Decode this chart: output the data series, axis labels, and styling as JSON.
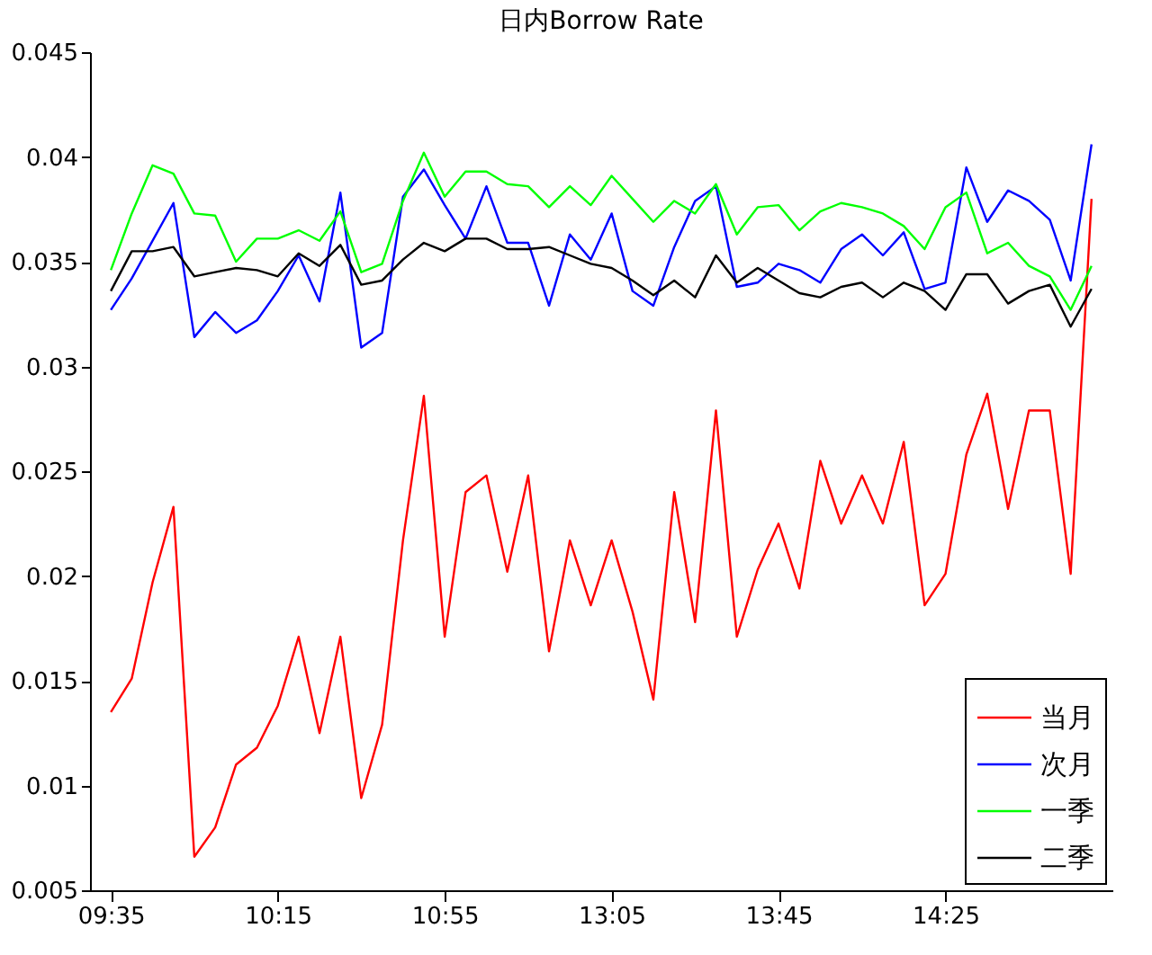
{
  "chart_data": {
    "type": "line",
    "title": "日内Borrow Rate",
    "categories": [
      "09:35",
      null,
      null,
      null,
      null,
      null,
      null,
      null,
      "10:15",
      null,
      null,
      null,
      null,
      null,
      null,
      null,
      "10:55",
      null,
      null,
      null,
      null,
      null,
      null,
      null,
      "13:05",
      null,
      null,
      null,
      null,
      null,
      null,
      null,
      "13:45",
      null,
      null,
      null,
      null,
      null,
      null,
      null,
      "14:25",
      null,
      null,
      null,
      null,
      null,
      null,
      null
    ],
    "series": [
      {
        "name": "当月",
        "color": "#ff0000",
        "values": [
          0.0135,
          0.0151,
          0.0197,
          0.0233,
          0.0066,
          0.008,
          0.011,
          0.0118,
          0.0138,
          0.0171,
          0.0125,
          0.0171,
          0.0094,
          0.0129,
          0.0217,
          0.0286,
          0.0171,
          0.024,
          0.0248,
          0.0202,
          0.0248,
          0.0164,
          0.0217,
          0.0186,
          0.0217,
          0.0183,
          0.0141,
          0.024,
          0.0178,
          0.0279,
          0.0171,
          0.0203,
          0.0225,
          0.0194,
          0.0255,
          0.0225,
          0.0248,
          0.0225,
          0.0264,
          0.0186,
          0.0201,
          0.0258,
          0.0287,
          0.0232,
          0.0279,
          0.0279,
          0.0201,
          0.038
        ]
      },
      {
        "name": "次月",
        "color": "#0000ff",
        "values": [
          0.0327,
          0.0342,
          0.036,
          0.0378,
          0.0314,
          0.0326,
          0.0316,
          0.0322,
          0.0336,
          0.0353,
          0.0331,
          0.0383,
          0.0309,
          0.0316,
          0.0381,
          0.0394,
          0.0377,
          0.0361,
          0.0386,
          0.0359,
          0.0359,
          0.0329,
          0.0363,
          0.0351,
          0.0373,
          0.0336,
          0.0329,
          0.0357,
          0.0379,
          0.0386,
          0.0338,
          0.034,
          0.0349,
          0.0346,
          0.034,
          0.0356,
          0.0363,
          0.0353,
          0.0364,
          0.0337,
          0.034,
          0.0395,
          0.0369,
          0.0384,
          0.0379,
          0.037,
          0.0341,
          0.0406
        ]
      },
      {
        "name": "一季",
        "color": "#00ff00",
        "values": [
          0.0346,
          0.0373,
          0.0396,
          0.0392,
          0.0373,
          0.0372,
          0.035,
          0.0361,
          0.0361,
          0.0365,
          0.036,
          0.0374,
          0.0345,
          0.0349,
          0.0379,
          0.0402,
          0.0381,
          0.0393,
          0.0393,
          0.0387,
          0.0386,
          0.0376,
          0.0386,
          0.0377,
          0.0391,
          0.038,
          0.0369,
          0.0379,
          0.0373,
          0.0387,
          0.0363,
          0.0376,
          0.0377,
          0.0365,
          0.0374,
          0.0378,
          0.0376,
          0.0373,
          0.0367,
          0.0356,
          0.0376,
          0.0383,
          0.0354,
          0.0359,
          0.0348,
          0.0343,
          0.0327,
          0.0348
        ]
      },
      {
        "name": "二季",
        "color": "#000000",
        "values": [
          0.0336,
          0.0355,
          0.0355,
          0.0357,
          0.0343,
          0.0345,
          0.0347,
          0.0346,
          0.0343,
          0.0354,
          0.0348,
          0.0358,
          0.0339,
          0.0341,
          0.0351,
          0.0359,
          0.0355,
          0.0361,
          0.0361,
          0.0356,
          0.0356,
          0.0357,
          0.0353,
          0.0349,
          0.0347,
          0.0341,
          0.0334,
          0.0341,
          0.0333,
          0.0353,
          0.034,
          0.0347,
          0.0341,
          0.0335,
          0.0333,
          0.0338,
          0.034,
          0.0333,
          0.034,
          0.0336,
          0.0327,
          0.0344,
          0.0344,
          0.033,
          0.0336,
          0.0339,
          0.0319,
          0.0337
        ]
      }
    ],
    "ylim": [
      0.005,
      0.045
    ],
    "yticks": [
      0.005,
      0.01,
      0.015,
      0.02,
      0.025,
      0.03,
      0.035,
      0.04,
      0.045
    ],
    "grid": false,
    "legend": "bottom right",
    "marker": "none",
    "line_style": "solid"
  }
}
